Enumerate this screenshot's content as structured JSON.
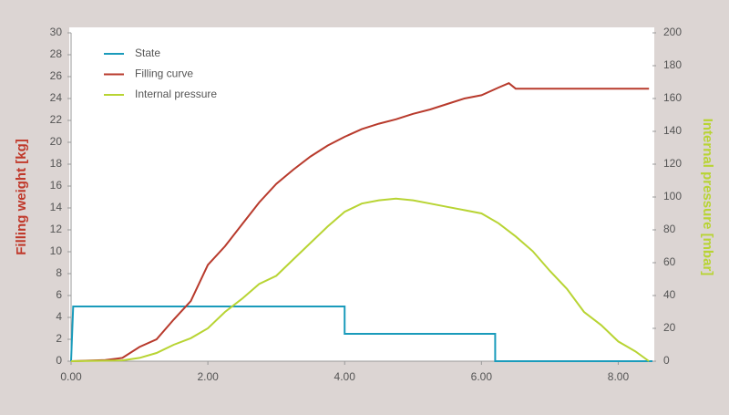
{
  "chart_data": {
    "type": "line",
    "ylabel": "Filling weight [kg]",
    "y2label": "Internal pressure [mbar]",
    "xlim": [
      0,
      8.5
    ],
    "ylim": [
      0,
      30
    ],
    "y2lim": [
      0,
      200
    ],
    "xticks": [
      {
        "value": 0,
        "label": "0.00"
      },
      {
        "value": 2,
        "label": "2.00"
      },
      {
        "value": 4,
        "label": "4.00"
      },
      {
        "value": 6,
        "label": "6.00"
      },
      {
        "value": 8,
        "label": "8.00"
      }
    ],
    "yticks": [
      0,
      2,
      4,
      6,
      8,
      10,
      12,
      14,
      16,
      18,
      20,
      22,
      24,
      26,
      28,
      30
    ],
    "y2ticks": [
      0,
      20,
      40,
      60,
      80,
      100,
      120,
      140,
      160,
      180,
      200
    ],
    "grid": false,
    "legend": "upper left",
    "ylabel_color": "#c0392b",
    "y2label_color": "#b8d433",
    "series": [
      {
        "name": "State",
        "color": "#1a9bbb",
        "x": [
          0,
          0.03,
          4.0,
          4.0,
          6.2,
          6.2,
          8.5
        ],
        "values": [
          0,
          5,
          5,
          2.5,
          2.5,
          0,
          0
        ]
      },
      {
        "name": "Filling curve",
        "color": "#b83a2c",
        "x": [
          0,
          0.5,
          0.75,
          1.0,
          1.25,
          1.5,
          1.75,
          2.0,
          2.25,
          2.5,
          2.75,
          3.0,
          3.25,
          3.5,
          3.75,
          4.0,
          4.25,
          4.5,
          4.75,
          5.0,
          5.25,
          5.5,
          5.75,
          6.0,
          6.25,
          6.4,
          6.5,
          7.0,
          7.5,
          8.0,
          8.45
        ],
        "values": [
          0,
          0.1,
          0.3,
          1.3,
          2.0,
          3.8,
          5.5,
          8.8,
          10.5,
          12.5,
          14.5,
          16.2,
          17.5,
          18.7,
          19.7,
          20.5,
          21.2,
          21.7,
          22.1,
          22.6,
          23.0,
          23.5,
          24.0,
          24.3,
          25.0,
          25.4,
          24.9,
          24.9,
          24.9,
          24.9,
          24.9
        ]
      },
      {
        "name": "Internal pressure",
        "color": "#b8d433",
        "axis": "y2",
        "x": [
          0,
          0.75,
          1.0,
          1.25,
          1.5,
          1.75,
          2.0,
          2.25,
          2.5,
          2.75,
          3.0,
          3.25,
          3.5,
          3.75,
          4.0,
          4.25,
          4.5,
          4.75,
          5.0,
          5.25,
          5.5,
          5.75,
          6.0,
          6.25,
          6.5,
          6.75,
          7.0,
          7.25,
          7.5,
          7.75,
          8.0,
          8.25,
          8.45
        ],
        "values": [
          0,
          0.5,
          2,
          5,
          10,
          14,
          20,
          30,
          38,
          47,
          52,
          62,
          72,
          82,
          91,
          96,
          98,
          99,
          98,
          96,
          94,
          92,
          90,
          84,
          76,
          67,
          55,
          44,
          30,
          22,
          12,
          6,
          0
        ]
      }
    ]
  }
}
